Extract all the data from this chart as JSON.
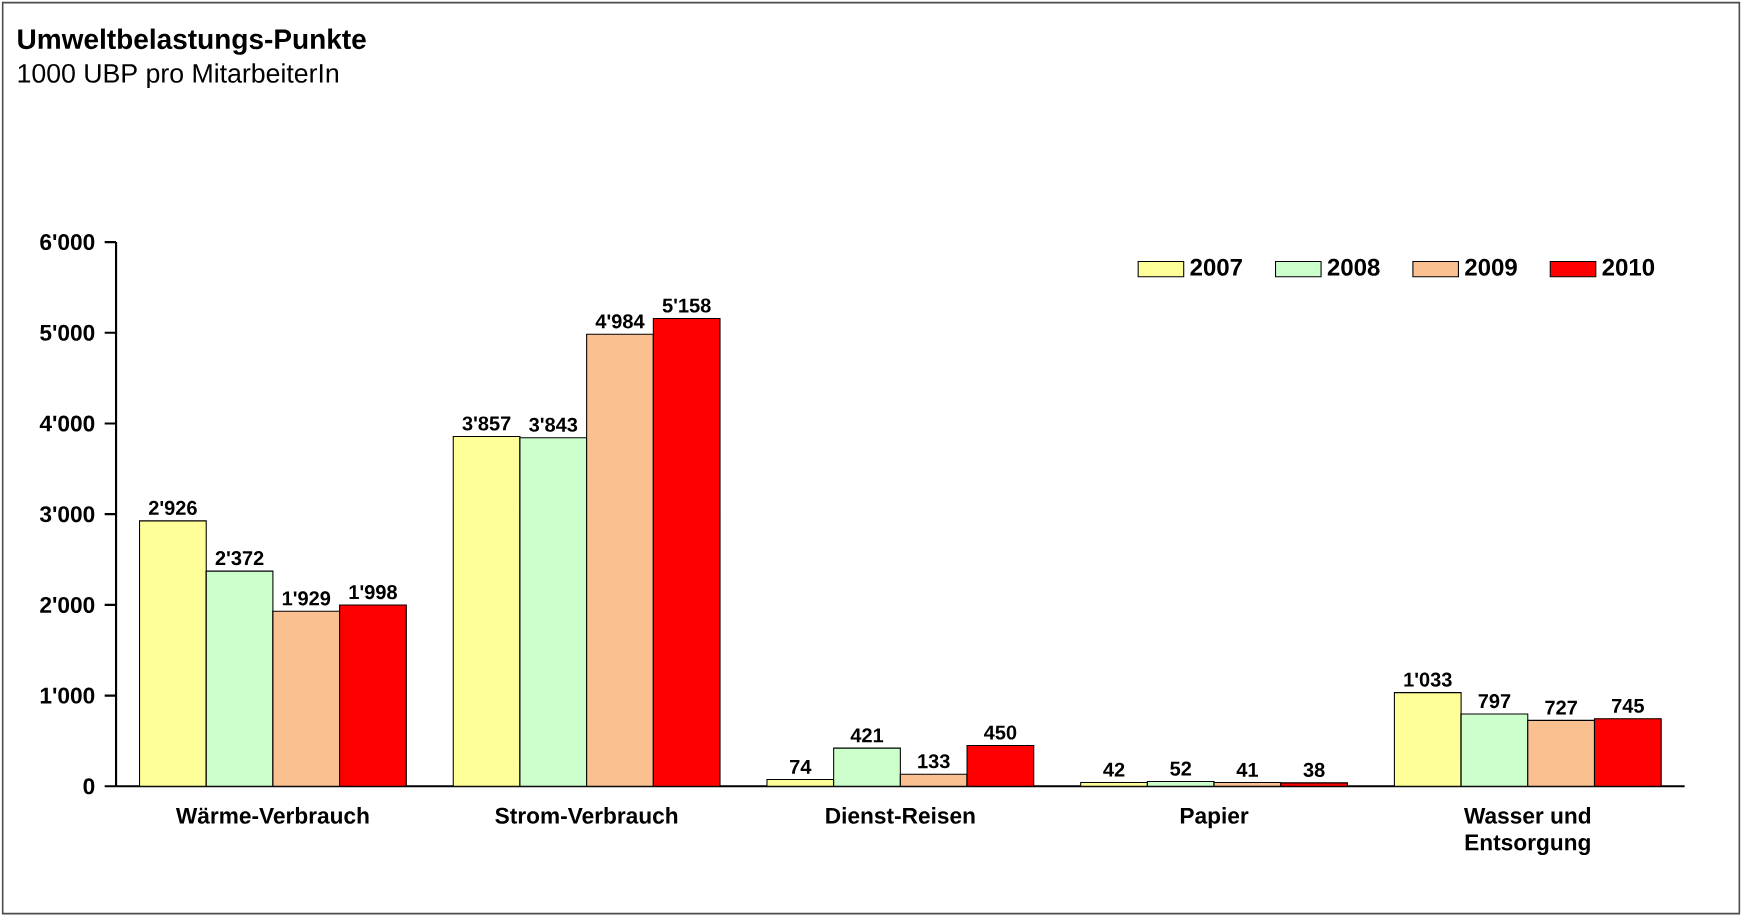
{
  "chart_data": {
    "type": "bar",
    "title": "Umweltbelastungs-Punkte",
    "subtitle": "1000 UBP pro MitarbeiterIn",
    "categories": [
      "Wärme-Verbrauch",
      "Strom-Verbrauch",
      "Dienst-Reisen",
      "Papier",
      "Wasser und Entsorgung"
    ],
    "series": [
      {
        "name": "2007",
        "color": "#ffff99",
        "values": [
          2926,
          3857,
          74,
          42,
          1033
        ],
        "value_labels": [
          "2'926",
          "3'857",
          "74",
          "42",
          "1'033"
        ]
      },
      {
        "name": "2008",
        "color": "#ccffcc",
        "values": [
          2372,
          3843,
          421,
          52,
          797
        ],
        "value_labels": [
          "2'372",
          "3'843",
          "421",
          "52",
          "797"
        ]
      },
      {
        "name": "2009",
        "color": "#fac090",
        "values": [
          1929,
          4984,
          133,
          41,
          727
        ],
        "value_labels": [
          "1'929",
          "4'984",
          "133",
          "41",
          "727"
        ]
      },
      {
        "name": "2010",
        "color": "#ff0000",
        "values": [
          1998,
          5158,
          450,
          38,
          745
        ],
        "value_labels": [
          "1'998",
          "5'158",
          "450",
          "38",
          "745"
        ]
      }
    ],
    "ylim": [
      0,
      6000
    ],
    "yticks": [
      {
        "value": 0,
        "label": "0"
      },
      {
        "value": 1000,
        "label": "1'000"
      },
      {
        "value": 2000,
        "label": "2'000"
      },
      {
        "value": 3000,
        "label": "3'000"
      },
      {
        "value": 4000,
        "label": "4'000"
      },
      {
        "value": 5000,
        "label": "5'000"
      },
      {
        "value": 6000,
        "label": "6'000"
      }
    ],
    "legend": "top right"
  }
}
